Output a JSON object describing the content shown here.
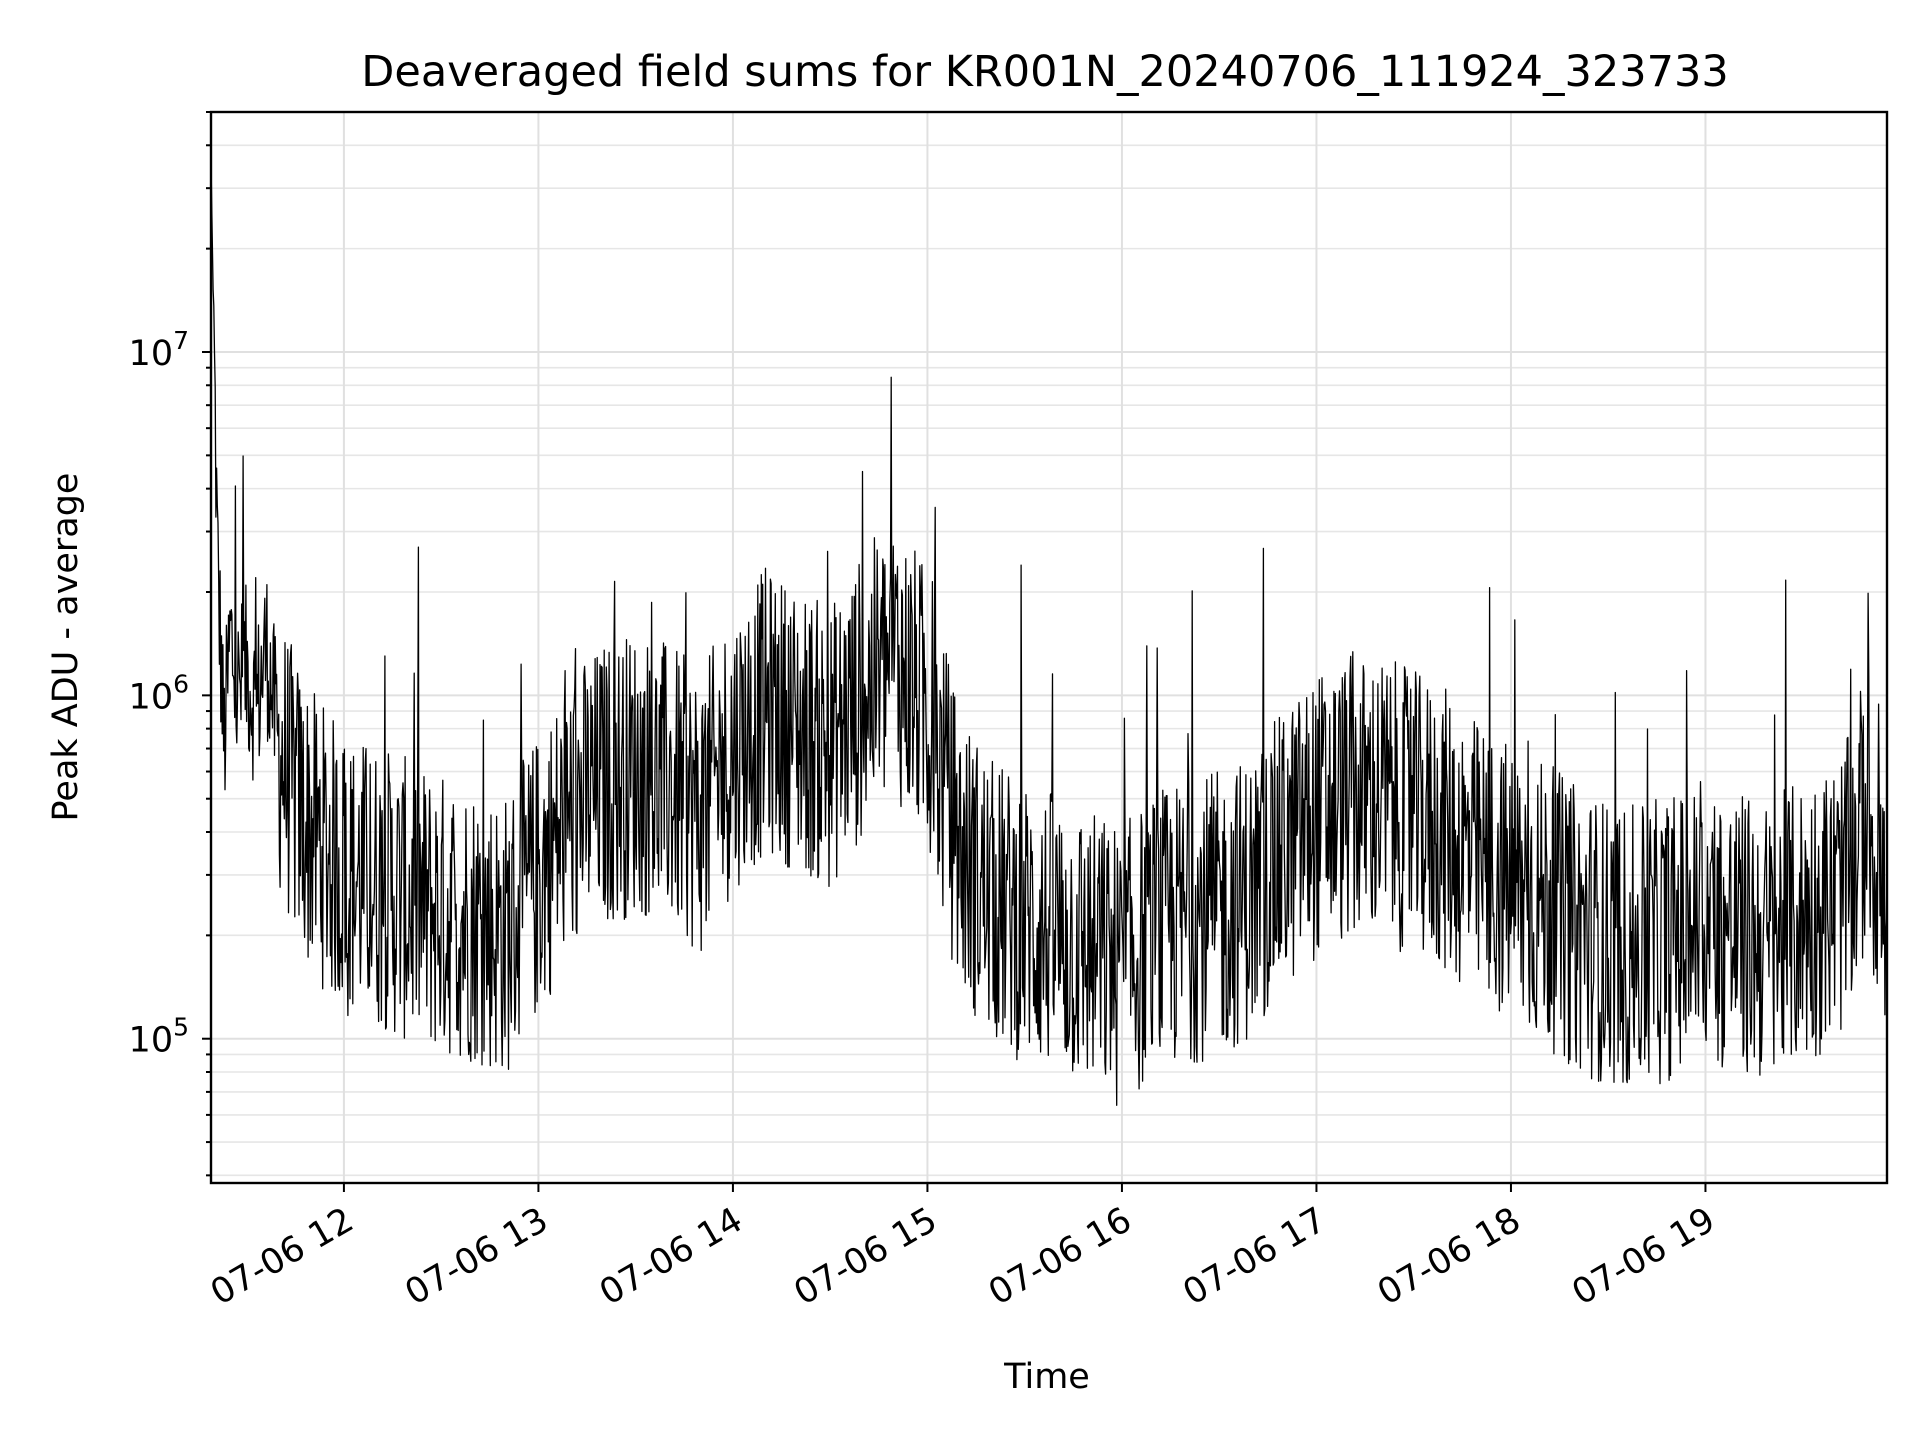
{
  "chart_data": {
    "type": "line",
    "title": "Deaveraged field sums for KR001N_20240706_111924_323733",
    "xlabel": "Time",
    "ylabel": "Peak ADU - average",
    "yscale": "log",
    "grid": true,
    "x_range": [
      "07-06 11:19",
      "07-06 19:56"
    ],
    "ylim": [
      38000,
      50000000
    ],
    "x_ticks": [
      "07-06 12",
      "07-06 13",
      "07-06 14",
      "07-06 15",
      "07-06 16",
      "07-06 17",
      "07-06 18",
      "07-06 19"
    ],
    "y_ticks": [
      {
        "base": "10",
        "exp": "5",
        "value": 100000
      },
      {
        "base": "10",
        "exp": "6",
        "value": 1000000
      },
      {
        "base": "10",
        "exp": "7",
        "value": 10000000
      }
    ],
    "series": [
      {
        "color": "#000000",
        "x": [
          "07-06 11:19",
          "07-06 11:21",
          "07-06 11:23",
          "07-06 11:25",
          "07-06 11:27",
          "07-06 11:30",
          "07-06 11:33",
          "07-06 11:36",
          "07-06 11:40",
          "07-06 11:45",
          "07-06 11:50",
          "07-06 11:55",
          "07-06 12:00",
          "07-06 12:10",
          "07-06 12:20",
          "07-06 12:30",
          "07-06 12:40",
          "07-06 12:50",
          "07-06 13:00",
          "07-06 13:10",
          "07-06 13:20",
          "07-06 13:30",
          "07-06 13:40",
          "07-06 13:50",
          "07-06 14:00",
          "07-06 14:10",
          "07-06 14:20",
          "07-06 14:30",
          "07-06 14:40",
          "07-06 14:50",
          "07-06 15:00",
          "07-06 15:10",
          "07-06 15:20",
          "07-06 15:30",
          "07-06 15:40",
          "07-06 15:50",
          "07-06 16:00",
          "07-06 16:10",
          "07-06 16:20",
          "07-06 16:30",
          "07-06 16:40",
          "07-06 16:50",
          "07-06 17:00",
          "07-06 17:10",
          "07-06 17:20",
          "07-06 17:30",
          "07-06 17:40",
          "07-06 17:50",
          "07-06 18:00",
          "07-06 18:10",
          "07-06 18:20",
          "07-06 18:30",
          "07-06 18:40",
          "07-06 18:50",
          "07-06 19:00",
          "07-06 19:10",
          "07-06 19:20",
          "07-06 19:30",
          "07-06 19:40",
          "07-06 19:45",
          "07-06 19:50",
          "07-06 19:56"
        ],
        "values": [
          36000000,
          2500000,
          700000,
          1500000,
          1000000,
          1200000,
          900000,
          1400000,
          700000,
          500000,
          400000,
          350000,
          300000,
          280000,
          250000,
          230000,
          220000,
          200000,
          300000,
          450000,
          550000,
          600000,
          550000,
          450000,
          700000,
          900000,
          800000,
          700000,
          1000000,
          1300000,
          900000,
          350000,
          250000,
          220000,
          200000,
          180000,
          160000,
          200000,
          220000,
          230000,
          260000,
          350000,
          450000,
          500000,
          500000,
          450000,
          400000,
          320000,
          280000,
          250000,
          210000,
          190000,
          180000,
          200000,
          220000,
          200000,
          190000,
          220000,
          250000,
          300000,
          500000,
          200000
        ]
      }
    ]
  }
}
